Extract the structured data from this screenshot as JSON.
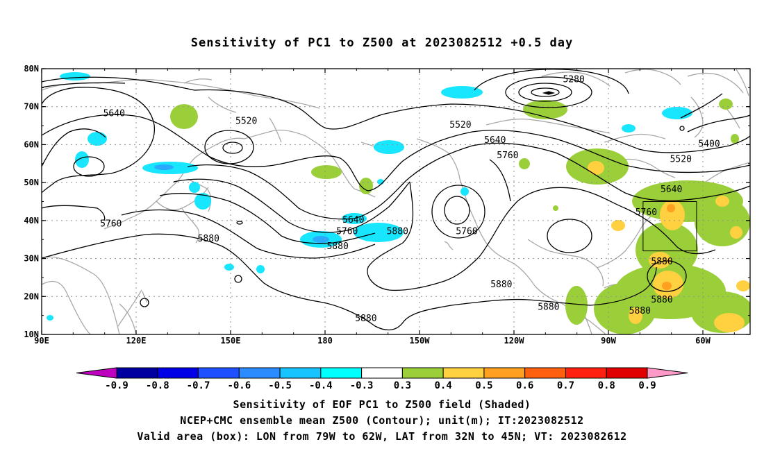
{
  "title": "Sensitivity of PC1 to Z500 at 2023082512 +0.5 day",
  "map": {
    "lat_labels": [
      {
        "text": "80N",
        "lat": 80
      },
      {
        "text": "70N",
        "lat": 70
      },
      {
        "text": "60N",
        "lat": 60
      },
      {
        "text": "50N",
        "lat": 50
      },
      {
        "text": "40N",
        "lat": 40
      },
      {
        "text": "30N",
        "lat": 30
      },
      {
        "text": "20N",
        "lat": 20
      },
      {
        "text": "10N",
        "lat": 10
      }
    ],
    "lon_labels": [
      {
        "text": "90E",
        "lon": 90
      },
      {
        "text": "120E",
        "lon": 120
      },
      {
        "text": "150E",
        "lon": 150
      },
      {
        "text": "180",
        "lon": 180
      },
      {
        "text": "150W",
        "lon": 210
      },
      {
        "text": "120W",
        "lon": 240
      },
      {
        "text": "90W",
        "lon": 270
      },
      {
        "text": "60W",
        "lon": 300
      }
    ],
    "domain": {
      "lon_min": 90,
      "lon_max": 315,
      "lat_min": 10,
      "lat_max": 80
    },
    "valid_box": {
      "lon_min": 281,
      "lon_max": 298,
      "lat_min": 32,
      "lat_max": 45
    },
    "contour_labels": [
      {
        "text": "5280",
        "lon": 259,
        "lat": 77
      },
      {
        "text": "5640",
        "lon": 113,
        "lat": 68
      },
      {
        "text": "5520",
        "lon": 155,
        "lat": 66
      },
      {
        "text": "5520",
        "lon": 223,
        "lat": 65
      },
      {
        "text": "5640",
        "lon": 234,
        "lat": 61
      },
      {
        "text": "5760",
        "lon": 238,
        "lat": 57
      },
      {
        "text": "5400",
        "lon": 302,
        "lat": 60
      },
      {
        "text": "5520",
        "lon": 293,
        "lat": 56
      },
      {
        "text": "5640",
        "lon": 290,
        "lat": 48
      },
      {
        "text": "5760",
        "lon": 282,
        "lat": 42
      },
      {
        "text": "5640",
        "lon": 189,
        "lat": 40
      },
      {
        "text": "5760",
        "lon": 187,
        "lat": 37
      },
      {
        "text": "5880",
        "lon": 203,
        "lat": 37
      },
      {
        "text": "5760",
        "lon": 225,
        "lat": 37
      },
      {
        "text": "5880",
        "lon": 184,
        "lat": 33
      },
      {
        "text": "5760",
        "lon": 112,
        "lat": 39
      },
      {
        "text": "5880",
        "lon": 143,
        "lat": 35
      },
      {
        "text": "5880",
        "lon": 287,
        "lat": 29
      },
      {
        "text": "5880",
        "lon": 236,
        "lat": 23
      },
      {
        "text": "5880",
        "lon": 251,
        "lat": 17
      },
      {
        "text": "5880",
        "lon": 287,
        "lat": 19
      },
      {
        "text": "5880",
        "lon": 280,
        "lat": 16
      },
      {
        "text": "5880",
        "lon": 193,
        "lat": 14
      }
    ]
  },
  "colorbar": {
    "labels": [
      "-0.9",
      "-0.8",
      "-0.7",
      "-0.6",
      "-0.5",
      "-0.4",
      "-0.3",
      "0.3",
      "0.4",
      "0.5",
      "0.6",
      "0.7",
      "0.8",
      "0.9"
    ],
    "colors": [
      "#c000c0",
      "#0000a0",
      "#0000e6",
      "#1e50ff",
      "#2a8cff",
      "#18c4ff",
      "#00ffff",
      "#ffffff",
      "#9bcf3a",
      "#ffd040",
      "#ffa020",
      "#ff6010",
      "#ff2010",
      "#e00000",
      "#ff9ac8"
    ]
  },
  "captions": [
    "Sensitivity of EOF PC1 to Z500 field (Shaded)",
    "NCEP+CMC ensemble mean Z500 (Contour); unit(m); IT:2023082512",
    "Valid area (box): LON from 79W to 62W, LAT from 32N to 45N; VT: 2023082612"
  ]
}
